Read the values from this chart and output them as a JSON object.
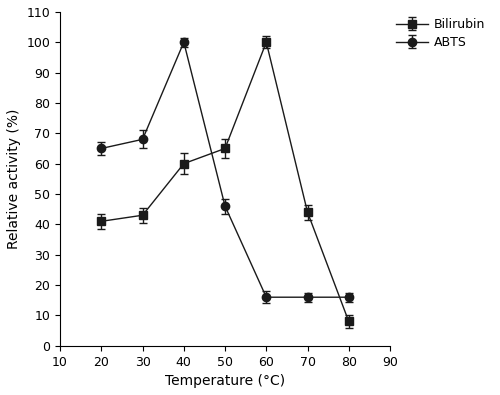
{
  "temperatures": [
    20,
    30,
    40,
    50,
    60,
    70,
    80
  ],
  "bilirubin_values": [
    41,
    43,
    60,
    65,
    100,
    44,
    8
  ],
  "bilirubin_errors": [
    2.5,
    2.5,
    3.5,
    3.0,
    2.0,
    2.5,
    2.0
  ],
  "abts_values": [
    65,
    68,
    100,
    46,
    16,
    16,
    16
  ],
  "abts_errors": [
    2.0,
    3.0,
    1.5,
    2.5,
    2.0,
    1.5,
    1.5
  ],
  "xlabel": "Temperature (°C)",
  "ylabel": "Relative activity (%)",
  "xlim": [
    10,
    90
  ],
  "ylim": [
    0,
    110
  ],
  "xticks": [
    10,
    20,
    30,
    40,
    50,
    60,
    70,
    80,
    90
  ],
  "yticks": [
    0,
    10,
    20,
    30,
    40,
    50,
    60,
    70,
    80,
    90,
    100,
    110
  ],
  "legend_bilirubin": "Bilirubin",
  "legend_abts": "ABTS",
  "line_color": "#1a1a1a",
  "marker_square": "s",
  "marker_circle": "o",
  "marker_size": 6,
  "line_width": 1.0,
  "capsize": 3,
  "elinewidth": 1.0,
  "tick_fontsize": 9,
  "label_fontsize": 10,
  "legend_fontsize": 9
}
